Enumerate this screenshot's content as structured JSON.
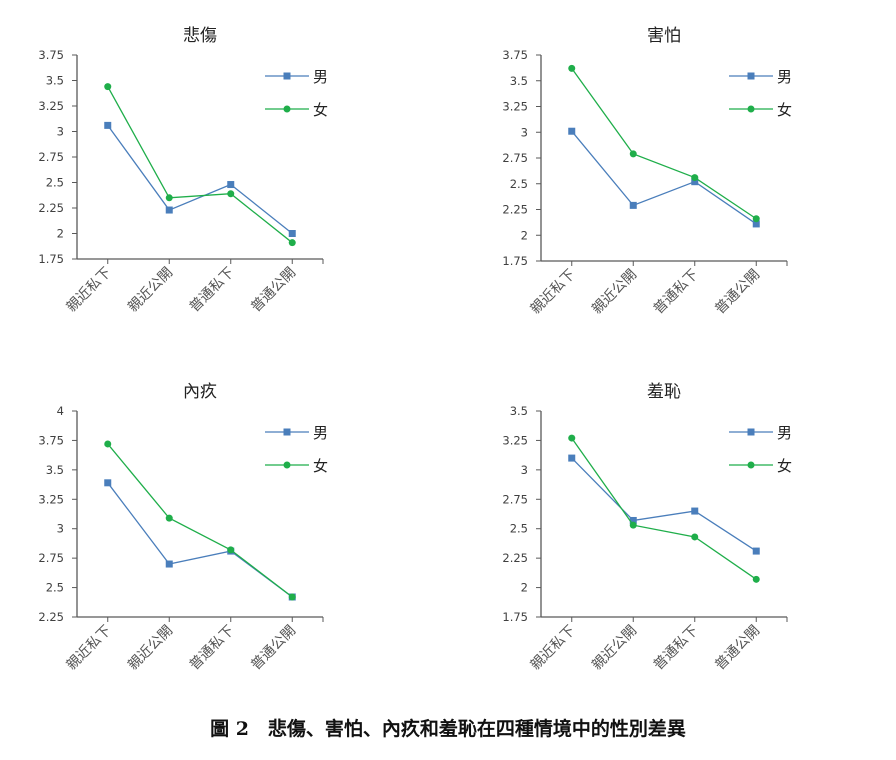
{
  "colors": {
    "male": "#4a7ebb",
    "female": "#1fae4a",
    "axis": "#595959",
    "text": "#404040"
  },
  "caption": "圖 2　悲傷、害怕、內疚和羞恥在四種情境中的性別差異",
  "chart_data": [
    {
      "type": "line",
      "title": "悲傷",
      "categories": [
        "親近私下",
        "親近公開",
        "普通私下",
        "普通公開"
      ],
      "ylim": [
        1.75,
        3.75
      ],
      "yticks": [
        "1.75",
        "2",
        "2.25",
        "2.5",
        "2.75",
        "3",
        "3.25",
        "3.5",
        "3.75"
      ],
      "legend": "top-right",
      "series": [
        {
          "name": "男",
          "marker": "square",
          "values": [
            3.06,
            2.23,
            2.48,
            2.0
          ]
        },
        {
          "name": "女",
          "marker": "circle",
          "values": [
            3.44,
            2.35,
            2.39,
            1.91
          ]
        }
      ]
    },
    {
      "type": "line",
      "title": "害怕",
      "categories": [
        "親近私下",
        "親近公開",
        "普通私下",
        "普通公開"
      ],
      "ylim": [
        1.75,
        3.75
      ],
      "yticks": [
        "1.75",
        "2",
        "2.25",
        "2.5",
        "2.75",
        "3",
        "3.25",
        "3.5",
        "3.75"
      ],
      "legend": "top-right",
      "series": [
        {
          "name": "男",
          "marker": "square",
          "values": [
            3.01,
            2.29,
            2.52,
            2.11
          ]
        },
        {
          "name": "女",
          "marker": "circle",
          "values": [
            3.62,
            2.79,
            2.56,
            2.16
          ]
        }
      ]
    },
    {
      "type": "line",
      "title": "內疚",
      "categories": [
        "親近私下",
        "親近公開",
        "普通私下",
        "普通公開"
      ],
      "ylim": [
        2.25,
        4
      ],
      "yticks": [
        "2.25",
        "2.5",
        "2.75",
        "3",
        "3.25",
        "3.5",
        "3.75",
        "4"
      ],
      "legend": "top-right",
      "series": [
        {
          "name": "男",
          "marker": "square",
          "values": [
            3.39,
            2.7,
            2.81,
            2.42
          ]
        },
        {
          "name": "女",
          "marker": "circle",
          "values": [
            3.72,
            3.09,
            2.82,
            2.42
          ]
        }
      ]
    },
    {
      "type": "line",
      "title": "羞恥",
      "categories": [
        "親近私下",
        "親近公開",
        "普通私下",
        "普通公開"
      ],
      "ylim": [
        1.75,
        3.5
      ],
      "yticks": [
        "1.75",
        "2",
        "2.25",
        "2.5",
        "2.75",
        "3",
        "3.25",
        "3.5"
      ],
      "legend": "top-right",
      "series": [
        {
          "name": "男",
          "marker": "square",
          "values": [
            3.1,
            2.57,
            2.65,
            2.31
          ]
        },
        {
          "name": "女",
          "marker": "circle",
          "values": [
            3.27,
            2.53,
            2.43,
            2.07
          ]
        }
      ]
    }
  ]
}
